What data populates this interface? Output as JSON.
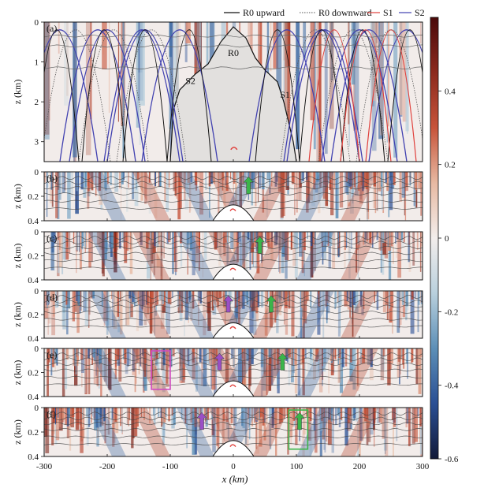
{
  "chart_data": {
    "type": "heatmap",
    "title": "",
    "xlabel": "x (km)",
    "xlim": [
      -300,
      300
    ],
    "x_ticks": [
      -300,
      -200,
      -100,
      0,
      100,
      200,
      300
    ],
    "ylabel": "z (km)",
    "legend": {
      "placement": "top",
      "entries": [
        {
          "name": "R0 upward",
          "color": "#111111",
          "style": "solid"
        },
        {
          "name": "R0 downward",
          "color": "#555555",
          "style": "dotted"
        },
        {
          "name": "S1",
          "color": "#e0403c",
          "style": "solid"
        },
        {
          "name": "S2",
          "color": "#4040b0",
          "style": "solid"
        }
      ]
    },
    "colorbar": {
      "range": [
        -0.6,
        0.6
      ],
      "ticks": [
        0.4,
        0.2,
        0,
        -0.2,
        -0.4,
        -0.6
      ],
      "colors": [
        "#4a0a0a",
        "#8c2a1e",
        "#c7543a",
        "#e7b9a2",
        "#f3eeec",
        "#b9d0dd",
        "#5c8fb7",
        "#2a4f94",
        "#121a38"
      ]
    },
    "panels": [
      {
        "label": "(a)",
        "ylim": [
          0,
          3.5
        ],
        "y_ticks": [
          0,
          1,
          2,
          3
        ],
        "annotations": [
          {
            "text": "R0",
            "x": 0,
            "z": 0.85
          },
          {
            "text": "S2",
            "x": -68,
            "z": 1.55
          },
          {
            "text": "S1",
            "x": 82,
            "z": 1.9
          }
        ]
      },
      {
        "label": "(b)",
        "ylim": [
          0,
          0.4
        ],
        "y_ticks": [
          0,
          0.2,
          0.4
        ],
        "arrows": [
          {
            "color": "green",
            "x": 24
          }
        ]
      },
      {
        "label": "(c)",
        "ylim": [
          0,
          0.4
        ],
        "y_ticks": [
          0,
          0.2,
          0.4
        ],
        "arrows": [
          {
            "color": "green",
            "x": 42
          }
        ]
      },
      {
        "label": "(d)",
        "ylim": [
          0,
          0.4
        ],
        "y_ticks": [
          0,
          0.2,
          0.4
        ],
        "arrows": [
          {
            "color": "purple",
            "x": -8
          },
          {
            "color": "green",
            "x": 60
          }
        ]
      },
      {
        "label": "(e)",
        "ylim": [
          0,
          0.4
        ],
        "y_ticks": [
          0,
          0.2,
          0.4
        ],
        "arrows": [
          {
            "color": "purple",
            "x": -22
          },
          {
            "color": "green",
            "x": 78
          }
        ],
        "boxes": [
          {
            "color": "magenta",
            "x0": -130,
            "x1": -100,
            "z0": 0.02,
            "z1": 0.34
          }
        ]
      },
      {
        "label": "(f)",
        "ylim": [
          0,
          0.4
        ],
        "y_ticks": [
          0,
          0.2,
          0.4
        ],
        "arrows": [
          {
            "color": "purple",
            "x": -50
          },
          {
            "color": "green",
            "x": 105
          }
        ],
        "boxes": [
          {
            "color": "green",
            "x0": 88,
            "x1": 118,
            "z0": 0.02,
            "z1": 0.34
          }
        ]
      }
    ]
  }
}
